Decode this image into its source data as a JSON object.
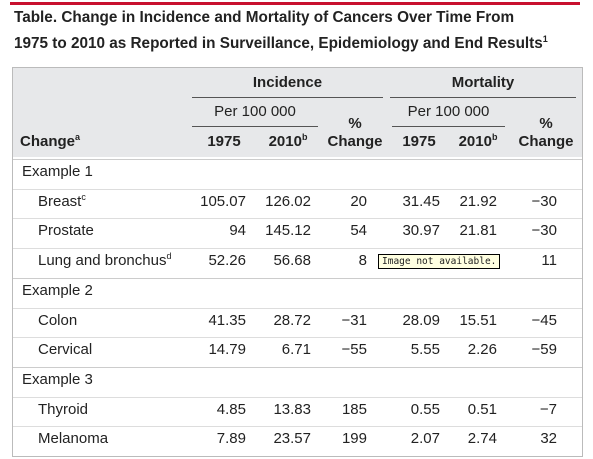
{
  "title": {
    "lines": [
      "Table. Change in Incidence and Mortality of Cancers Over Time From",
      "1975 to 2010 as Reported in Surveillance, Epidemiology and End Results"
    ],
    "note": "1"
  },
  "table": {
    "group_headers": [
      "Incidence",
      "Mortality"
    ],
    "sub_headers": [
      "Per 100 000",
      "Per 100 000"
    ],
    "columns": [
      {
        "text": "Change",
        "note": "a"
      },
      {
        "text": "1975"
      },
      {
        "text": "2010",
        "note": "b"
      },
      {
        "text": "% Change"
      },
      {
        "text": "1975"
      },
      {
        "text": "2010",
        "note": "b"
      },
      {
        "text": "% Change"
      }
    ],
    "groups": [
      {
        "label": "Example 1",
        "rows": [
          {
            "label": "Breast",
            "note": "c",
            "cells": [
              "105.07",
              "126.02",
              "20",
              "31.45",
              "21.92",
              "−30"
            ]
          },
          {
            "label": "Prostate",
            "cells": [
              "94",
              "145.12",
              "54",
              "30.97",
              "21.81",
              "−30"
            ]
          },
          {
            "label": "Lung and bronchus",
            "note": "d",
            "cells": [
              "52.26",
              "56.68",
              "8",
              null,
              null,
              "11"
            ]
          }
        ]
      },
      {
        "label": "Example 2",
        "rows": [
          {
            "label": "Colon",
            "cells": [
              "41.35",
              "28.72",
              "−31",
              "28.09",
              "15.51",
              "−45"
            ]
          },
          {
            "label": "Cervical",
            "cells": [
              "14.79",
              "6.71",
              "−55",
              "5.55",
              "2.26",
              "−59"
            ]
          }
        ]
      },
      {
        "label": "Example 3",
        "rows": [
          {
            "label": "Thyroid",
            "cells": [
              "4.85",
              "13.83",
              "185",
              "0.55",
              "0.51",
              "−7"
            ]
          },
          {
            "label": "Melanoma",
            "cells": [
              "7.89",
              "23.57",
              "199",
              "2.07",
              "2.74",
              "32"
            ]
          }
        ]
      }
    ]
  },
  "tooltip": "Image not available."
}
